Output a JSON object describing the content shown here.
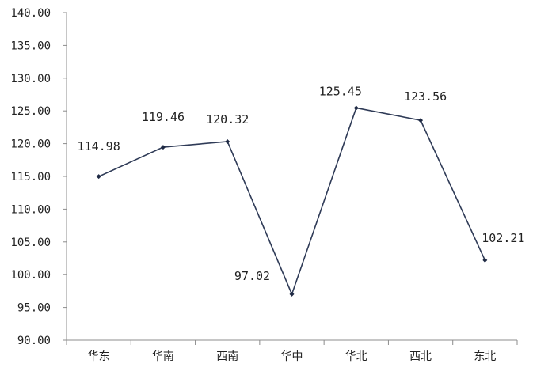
{
  "chart_data": {
    "type": "line",
    "title": "",
    "xlabel": "",
    "ylabel": "",
    "categories": [
      "华东",
      "华南",
      "西南",
      "华中",
      "华北",
      "西北",
      "东北"
    ],
    "series": [
      {
        "values": [
          114.98,
          119.46,
          120.32,
          97.02,
          125.45,
          123.56,
          102.21
        ]
      }
    ],
    "data_labels": [
      "114.98",
      "119.46",
      "120.32",
      "97.02",
      "125.45",
      "123.56",
      "102.21"
    ],
    "y_ticks": [
      "140.00",
      "135.00",
      "130.00",
      "125.00",
      "120.00",
      "115.00",
      "110.00",
      "105.00",
      "100.00",
      "95.00",
      "90.00"
    ],
    "ylim": [
      90,
      140
    ],
    "y_step": 5,
    "grid": false,
    "legend": "none",
    "line_color": "#2f3b57",
    "marker_color": "#1f2a44"
  }
}
